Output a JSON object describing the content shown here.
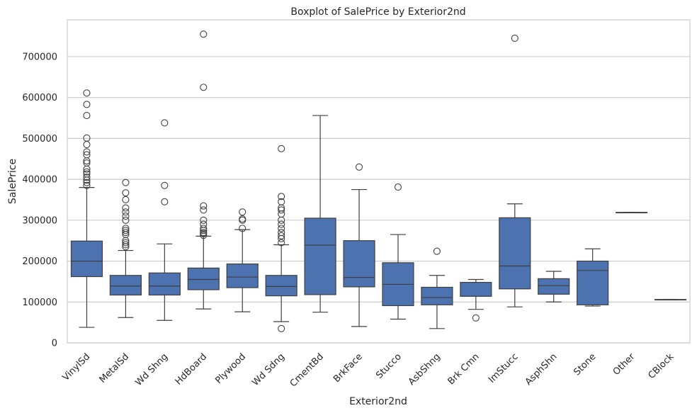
{
  "chart_data": {
    "type": "box",
    "title": "Boxplot of SalePrice by Exterior2nd",
    "xlabel": "Exterior2nd",
    "ylabel": "SalePrice",
    "ylim": [
      0,
      790000
    ],
    "yticks": [
      0,
      100000,
      200000,
      300000,
      400000,
      500000,
      600000,
      700000
    ],
    "ytick_labels": [
      "0",
      "100000",
      "200000",
      "300000",
      "400000",
      "500000",
      "600000",
      "700000"
    ],
    "grid": "horizontal",
    "box_color": "#4c72b0",
    "categories": [
      "VinylSd",
      "MetalSd",
      "Wd Shng",
      "HdBoard",
      "Plywood",
      "Wd Sdng",
      "CmentBd",
      "BrkFace",
      "Stucco",
      "AsbShng",
      "Brk Cmn",
      "ImStucc",
      "AsphShn",
      "Stone",
      "Other",
      "CBlock"
    ],
    "boxes": [
      {
        "whislo": 38000,
        "q1": 162000,
        "med": 200000,
        "q3": 249000,
        "whishi": 380000,
        "fliers": [
          385000,
          392000,
          398000,
          405000,
          413000,
          418000,
          425000,
          440000,
          445000,
          460000,
          467000,
          485000,
          501000,
          556000,
          583000,
          611000
        ]
      },
      {
        "whislo": 62000,
        "q1": 117000,
        "med": 139000,
        "q3": 165000,
        "whishi": 226000,
        "fliers": [
          235000,
          240000,
          245000,
          250000,
          265000,
          270000,
          275000,
          280000,
          300000,
          310000,
          320000,
          330000,
          350000,
          367000,
          392000
        ]
      },
      {
        "whislo": 55000,
        "q1": 117000,
        "med": 139000,
        "q3": 171000,
        "whishi": 242000,
        "fliers": [
          345000,
          385000,
          538000
        ]
      },
      {
        "whislo": 83000,
        "q1": 130000,
        "med": 155000,
        "q3": 183000,
        "whishi": 261000,
        "fliers": [
          263000,
          267000,
          270000,
          275000,
          280000,
          290000,
          300000,
          325000,
          335000,
          625000,
          755000
        ]
      },
      {
        "whislo": 76000,
        "q1": 135000,
        "med": 161000,
        "q3": 193000,
        "whishi": 277000,
        "fliers": [
          280000,
          300000,
          303000,
          320000
        ]
      },
      {
        "whislo": 52000,
        "q1": 115000,
        "med": 138000,
        "q3": 165000,
        "whishi": 240000,
        "fliers": [
          35000,
          245000,
          255000,
          262000,
          270000,
          280000,
          290000,
          300000,
          315000,
          325000,
          330000,
          345000,
          358000,
          475000
        ]
      },
      {
        "whislo": 75000,
        "q1": 118000,
        "med": 239000,
        "q3": 305000,
        "whishi": 556000,
        "fliers": []
      },
      {
        "whislo": 40000,
        "q1": 137000,
        "med": 160000,
        "q3": 250000,
        "whishi": 375000,
        "fliers": [
          430000
        ]
      },
      {
        "whislo": 58000,
        "q1": 91000,
        "med": 143000,
        "q3": 196000,
        "whishi": 265000,
        "fliers": [
          381000
        ]
      },
      {
        "whislo": 35000,
        "q1": 93000,
        "med": 111000,
        "q3": 136000,
        "whishi": 165000,
        "fliers": [
          224000
        ]
      },
      {
        "whislo": 82000,
        "q1": 114000,
        "med": 114000,
        "q3": 148000,
        "whishi": 155000,
        "fliers": [
          61000
        ]
      },
      {
        "whislo": 88000,
        "q1": 132000,
        "med": 188000,
        "q3": 306000,
        "whishi": 340000,
        "fliers": [
          745000
        ]
      },
      {
        "whislo": 100000,
        "q1": 119000,
        "med": 140000,
        "q3": 157000,
        "whishi": 175000,
        "fliers": []
      },
      {
        "whislo": 90000,
        "q1": 93000,
        "med": 177000,
        "q3": 200000,
        "whishi": 230000,
        "fliers": []
      },
      {
        "whislo": 319000,
        "q1": 319000,
        "med": 319000,
        "q3": 319000,
        "whishi": 319000,
        "fliers": []
      },
      {
        "whislo": 106000,
        "q1": 106000,
        "med": 106000,
        "q3": 106000,
        "whishi": 106000,
        "fliers": []
      }
    ]
  }
}
